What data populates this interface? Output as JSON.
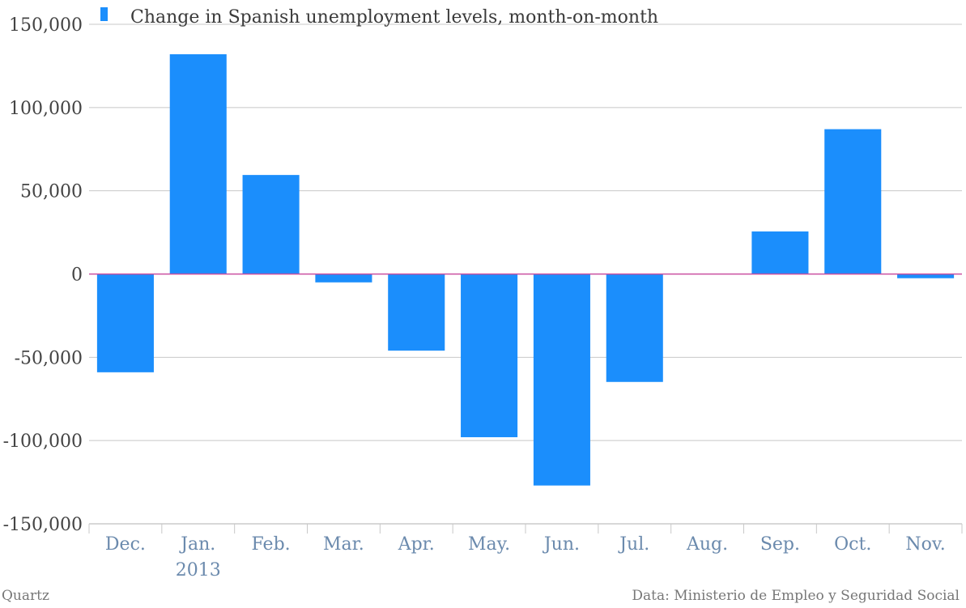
{
  "chart_data": {
    "type": "bar",
    "series": [
      {
        "name": "Change in Spanish unemployment levels, month-on-month",
        "values": [
          -59000,
          132000,
          59500,
          -5000,
          -46000,
          -98000,
          -127000,
          -64800,
          0,
          25600,
          87000,
          -2500
        ]
      }
    ],
    "categories": [
      "Dec.",
      "Jan.",
      "Feb.",
      "Mar.",
      "Apr.",
      "May.",
      "Jun.",
      "Jul.",
      "Aug.",
      "Sep.",
      "Oct.",
      "Nov."
    ],
    "category_sublabels": [
      "",
      "2013",
      "",
      "",
      "",
      "",
      "",
      "",
      "",
      "",
      "",
      ""
    ],
    "yticks": [
      "150,000",
      "100,000",
      "50,000",
      "0",
      "-50,000",
      "-100,000",
      "-150,000"
    ],
    "ytick_values": [
      150000,
      100000,
      50000,
      0,
      -50000,
      -100000,
      -150000
    ],
    "ylim": [
      -150000,
      150000
    ],
    "grid": true,
    "legend_position": "top-left",
    "colors": {
      "bar": "#1b8efc",
      "zero_line": "#c94fa0",
      "grid": "#c8c8c8",
      "xtick": "#6b8aad"
    }
  },
  "footer": {
    "source_left": "Quartz",
    "source_right": "Data: Ministerio de Empleo y Seguridad Social"
  }
}
